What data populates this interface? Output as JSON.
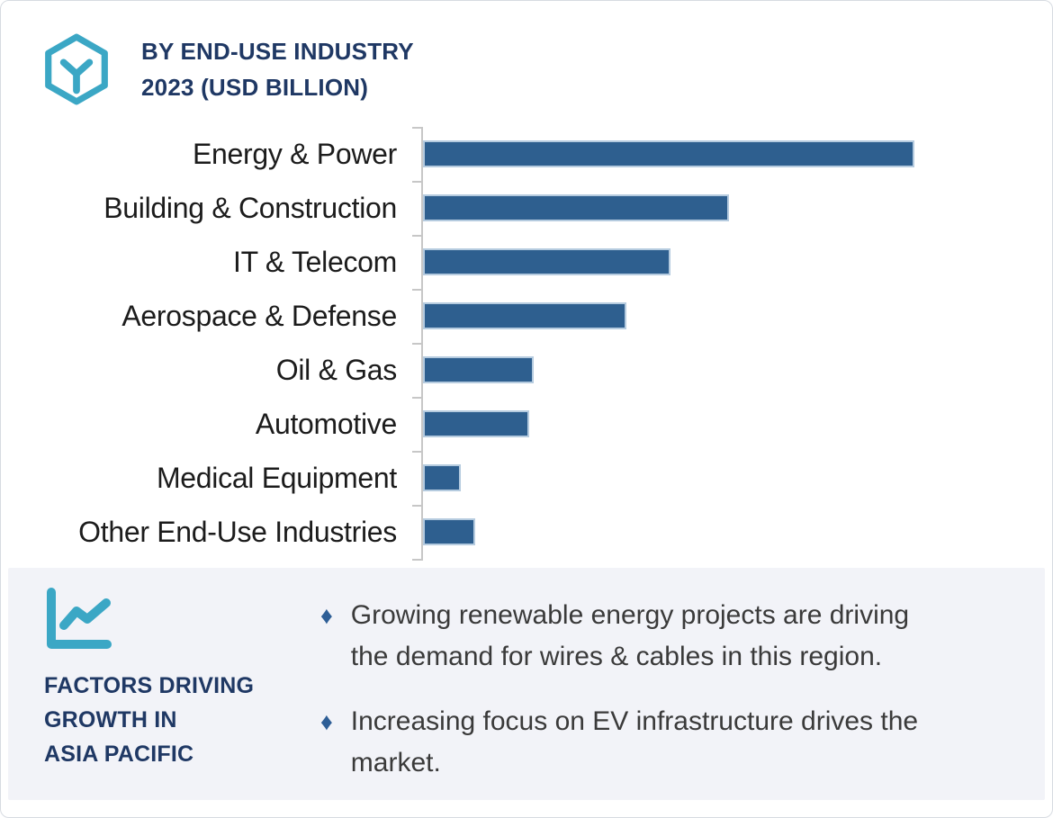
{
  "header": {
    "title": "BY END-USE INDUSTRY\n2023 (USD BILLION)",
    "icon": "hexagon-cube-icon"
  },
  "colors": {
    "navy_heading": "#1F3864",
    "teal_accent": "#3BA7C5",
    "bar_fill": "#2E5F8F",
    "bar_outline": "#B5CBDF",
    "axis_gray": "#C7C7C7",
    "label_text": "#1C1C1C",
    "body_text": "#3A3A3A",
    "panel_background": "#F2F3F8",
    "bullet_diamond": "#2E5E96"
  },
  "chart_data": {
    "type": "bar",
    "orientation": "horizontal",
    "title": "BY END-USE INDUSTRY 2023 (USD BILLION)",
    "unit": "USD Billion",
    "categories": [
      "Energy & Power",
      "Building & Construction",
      "IT & Telecom",
      "Aerospace & Defense",
      "Oil & Gas",
      "Automotive",
      "Medical Equipment",
      "Other End-Use Industries"
    ],
    "values_relative_pct": [
      100,
      62,
      50,
      41,
      22,
      21,
      7,
      10
    ],
    "note": "Bars carry no printed values or axis scale in the source image; values are estimated bar lengths relative to the longest bar (Energy & Power = 100).",
    "value_labels_shown": false,
    "gridlines": false,
    "legend": "none",
    "bar_color": "#2E5F8F"
  },
  "factors_panel": {
    "icon": "line-chart-icon",
    "heading": "FACTORS DRIVING\nGROWTH IN\nASIA PACIFIC",
    "bullet_marker": "♦",
    "bullets": [
      "Growing renewable energy projects are driving\nthe demand for wires & cables in this region.",
      "Increasing focus on EV infrastructure drives the\nmarket."
    ]
  }
}
